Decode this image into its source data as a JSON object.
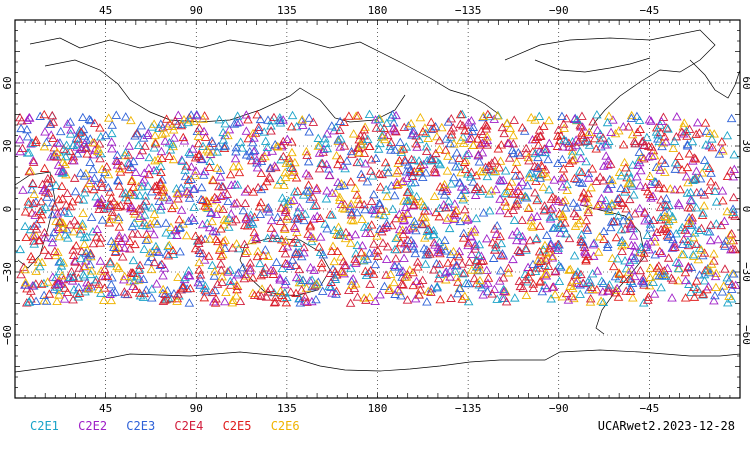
{
  "map": {
    "lon_labels": [
      "45",
      "90",
      "135",
      "180",
      "−135",
      "−90",
      "−45"
    ],
    "lat_labels": [
      "60",
      "30",
      "0",
      "−30",
      "−60"
    ]
  },
  "legend": [
    {
      "label": "C2E1",
      "color": "#1aa3c8"
    },
    {
      "label": "C2E2",
      "color": "#a020c8"
    },
    {
      "label": "C2E3",
      "color": "#2f62d8"
    },
    {
      "label": "C2E4",
      "color": "#d21e3c"
    },
    {
      "label": "C2E5",
      "color": "#e01e1e"
    },
    {
      "label": "C2E6",
      "color": "#f0b400"
    }
  ],
  "product_label": "UCARwet2.2023-12-28",
  "chart_data": {
    "type": "scatter",
    "marker": "open-triangle",
    "region": "global occultation locations, latitude band approx 45S to 45N",
    "lat_range": [
      -45,
      45
    ]
  }
}
